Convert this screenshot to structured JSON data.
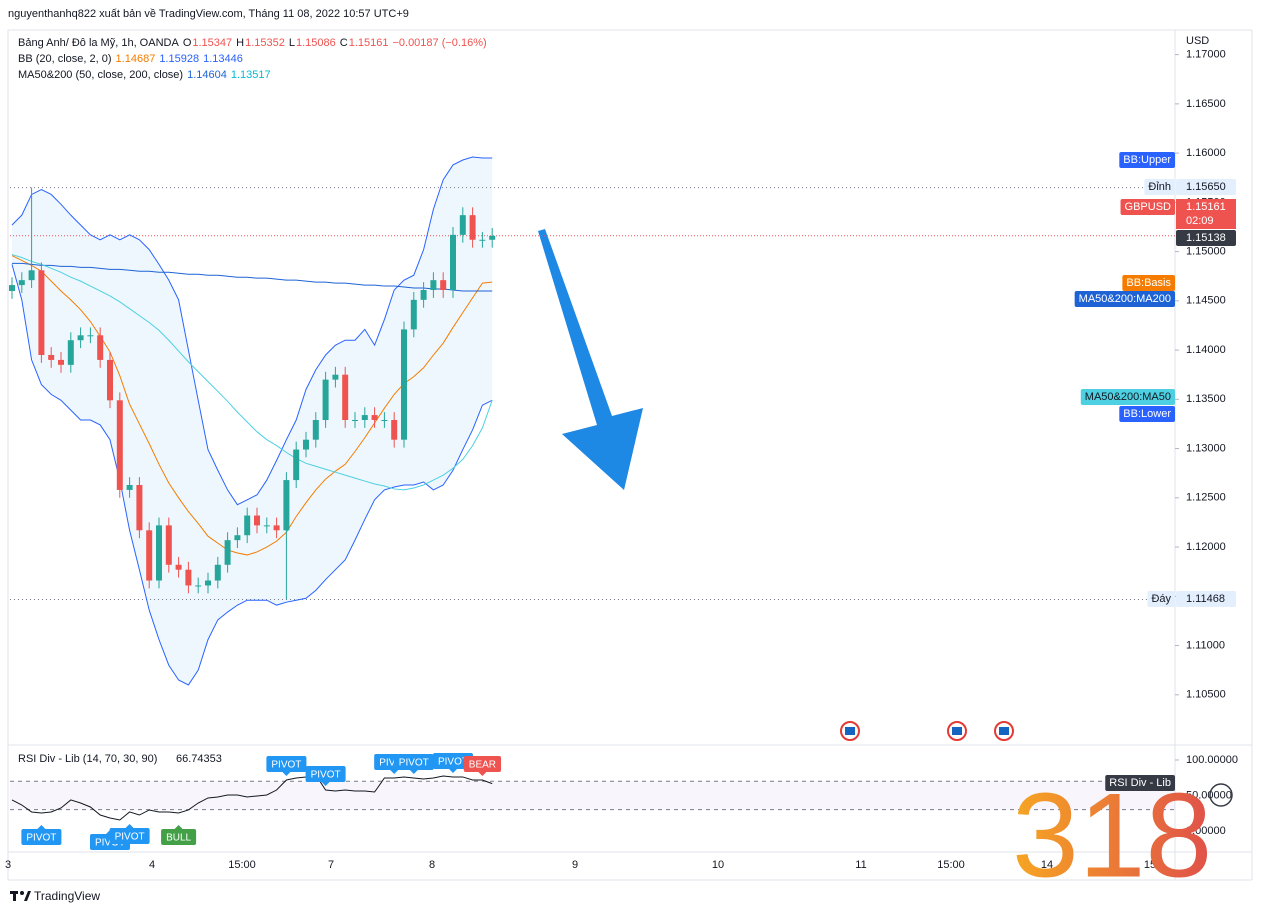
{
  "header": {
    "publisher": "nguyenthanhq822 xuất bản về TradingView.com, Tháng 11 08, 2022 10:57 UTC+9",
    "brand": "TradingView"
  },
  "legend": [
    [
      {
        "text": "Bảng Anh/ Đô la Mỹ, 1h, OANDA",
        "color": "#131722"
      },
      {
        "text": "O",
        "color": "#131722"
      },
      {
        "text": "1.15347",
        "color": "#ef5350"
      },
      {
        "text": "H",
        "color": "#131722"
      },
      {
        "text": "1.15352",
        "color": "#ef5350"
      },
      {
        "text": "L",
        "color": "#131722"
      },
      {
        "text": "1.15086",
        "color": "#ef5350"
      },
      {
        "text": "C",
        "color": "#131722"
      },
      {
        "text": "1.15161",
        "color": "#ef5350"
      },
      {
        "text": "−0.00187 (−0.16%)",
        "color": "#ef5350"
      }
    ],
    [
      {
        "text": "BB (20, close, 2, 0)",
        "color": "#131722"
      },
      {
        "text": "1.14687",
        "color": "#f57c00"
      },
      {
        "text": "1.15928",
        "color": "#2962ff"
      },
      {
        "text": "1.13446",
        "color": "#2962ff"
      }
    ],
    [
      {
        "text": "MA50&200 (50, close, 200, close)",
        "color": "#131722"
      },
      {
        "text": "1.14604",
        "color": "#1e63d6"
      },
      {
        "text": "1.13517",
        "color": "#00bcd4"
      }
    ]
  ],
  "watermark": "318",
  "chart_data": [
    {
      "type": "candlestick",
      "currency": "USD",
      "grid": false,
      "up_color": "#26a69a",
      "down_color": "#ef5350",
      "ylim": [
        1.0999,
        1.1725
      ],
      "yticks": [
        {
          "value": 1.17,
          "label": "1.17000"
        },
        {
          "value": 1.165,
          "label": "1.16500"
        },
        {
          "value": 1.16,
          "label": "1.16000"
        },
        {
          "value": 1.155,
          "label": "1.15500"
        },
        {
          "value": 1.15,
          "label": "1.15000"
        },
        {
          "value": 1.145,
          "label": "1.14500"
        },
        {
          "value": 1.14,
          "label": "1.14000"
        },
        {
          "value": 1.135,
          "label": "1.13500"
        },
        {
          "value": 1.13,
          "label": "1.13000"
        },
        {
          "value": 1.125,
          "label": "1.12500"
        },
        {
          "value": 1.12,
          "label": "1.12000"
        },
        {
          "value": 1.115,
          "label": "1.11500"
        },
        {
          "value": 1.11,
          "label": "1.11000"
        },
        {
          "value": 1.105,
          "label": "1.10500"
        }
      ],
      "open": [
        1.146,
        1.1466,
        1.1471,
        1.1481,
        1.1395,
        1.139,
        1.1385,
        1.141,
        1.1415,
        1.1415,
        1.139,
        1.1349,
        1.1258,
        1.1263,
        1.1217,
        1.1166,
        1.1222,
        1.1182,
        1.1177,
        1.1161,
        1.1161,
        1.1166,
        1.1182,
        1.1207,
        1.1212,
        1.1232,
        1.1222,
        1.1222,
        1.1217,
        1.1268,
        1.1299,
        1.1309,
        1.1329,
        1.137,
        1.1375,
        1.1329,
        1.1329,
        1.1334,
        1.1329,
        1.1329,
        1.1309,
        1.1421,
        1.1451,
        1.1461,
        1.1471,
        1.1461,
        1.1517,
        1.1537,
        1.1512,
        1.1512
      ],
      "high": [
        1.1474,
        1.1479,
        1.1565,
        1.1489,
        1.1403,
        1.1398,
        1.1418,
        1.1423,
        1.1423,
        1.1423,
        1.1398,
        1.1357,
        1.1271,
        1.1271,
        1.1225,
        1.123,
        1.123,
        1.119,
        1.1185,
        1.1169,
        1.1174,
        1.119,
        1.1215,
        1.122,
        1.124,
        1.124,
        1.123,
        1.123,
        1.1276,
        1.1307,
        1.1317,
        1.1337,
        1.1378,
        1.1383,
        1.1383,
        1.1337,
        1.1342,
        1.1342,
        1.1337,
        1.1337,
        1.1429,
        1.1459,
        1.1469,
        1.1479,
        1.1479,
        1.1525,
        1.1545,
        1.1545,
        1.152,
        1.1524
      ],
      "low": [
        1.1452,
        1.1458,
        1.1463,
        1.1387,
        1.1382,
        1.1377,
        1.1377,
        1.1402,
        1.1407,
        1.1382,
        1.1341,
        1.125,
        1.125,
        1.1209,
        1.1158,
        1.1158,
        1.1174,
        1.1169,
        1.1153,
        1.1153,
        1.1153,
        1.1158,
        1.1174,
        1.1199,
        1.1204,
        1.1214,
        1.1214,
        1.1209,
        1.1147,
        1.126,
        1.1291,
        1.1301,
        1.1321,
        1.1362,
        1.1321,
        1.1321,
        1.1321,
        1.1321,
        1.1321,
        1.1301,
        1.1301,
        1.1413,
        1.1443,
        1.1453,
        1.1453,
        1.1453,
        1.1509,
        1.1504,
        1.1504,
        1.1504
      ],
      "close": [
        1.1466,
        1.1471,
        1.1481,
        1.1395,
        1.139,
        1.1385,
        1.141,
        1.1415,
        1.1415,
        1.139,
        1.1349,
        1.1258,
        1.1263,
        1.1217,
        1.1166,
        1.1222,
        1.1182,
        1.1177,
        1.1161,
        1.1161,
        1.1166,
        1.1182,
        1.1207,
        1.1212,
        1.1232,
        1.1222,
        1.1222,
        1.1217,
        1.1268,
        1.1299,
        1.1309,
        1.1329,
        1.137,
        1.1375,
        1.1329,
        1.1329,
        1.1334,
        1.1329,
        1.1329,
        1.1309,
        1.1421,
        1.1451,
        1.1461,
        1.1471,
        1.1461,
        1.1517,
        1.1537,
        1.1512,
        1.1512,
        1.1516
      ],
      "overlays": [
        {
          "name": "BB:Upper",
          "color": "#2962ff",
          "tag_text": "#ffffff",
          "fill": "rgba(33,150,243,0.08)",
          "values": [
            1.1527,
            1.1537,
            1.1558,
            1.1563,
            1.1558,
            1.1548,
            1.1537,
            1.1527,
            1.1517,
            1.1512,
            1.1517,
            1.1512,
            1.1517,
            1.1512,
            1.1502,
            1.1487,
            1.1471,
            1.1451,
            1.14,
            1.1349,
            1.1299,
            1.1278,
            1.1258,
            1.1243,
            1.1248,
            1.1253,
            1.1268,
            1.1288,
            1.1309,
            1.1329,
            1.136,
            1.138,
            1.1395,
            1.1405,
            1.141,
            1.141,
            1.1421,
            1.1405,
            1.1431,
            1.1461,
            1.1471,
            1.1476,
            1.1502,
            1.1543,
            1.1573,
            1.1588,
            1.1593,
            1.1596,
            1.1595,
            1.1595
          ]
        },
        {
          "name": "BB:Basis",
          "color": "#f57c00",
          "tag_text": "#ffffff",
          "values": [
            1.1496,
            1.1491,
            1.1486,
            1.148,
            1.147,
            1.146,
            1.1451,
            1.1441,
            1.1429,
            1.1414,
            1.1398,
            1.1374,
            1.1345,
            1.1325,
            1.1305,
            1.1284,
            1.1265,
            1.125,
            1.1236,
            1.1224,
            1.1211,
            1.1204,
            1.1197,
            1.1194,
            1.1192,
            1.1195,
            1.12,
            1.1206,
            1.1215,
            1.1231,
            1.1245,
            1.1258,
            1.1269,
            1.1277,
            1.1284,
            1.1297,
            1.1311,
            1.1326,
            1.1341,
            1.1355,
            1.1366,
            1.1373,
            1.1382,
            1.1395,
            1.1407,
            1.1423,
            1.1438,
            1.1453,
            1.1468,
            1.1469
          ]
        },
        {
          "name": "BB:Lower",
          "color": "#2962ff",
          "tag_text": "#ffffff",
          "fill": "rgba(33,150,243,0.08)",
          "values": [
            1.1487,
            1.1451,
            1.139,
            1.1365,
            1.1355,
            1.1349,
            1.1339,
            1.1329,
            1.1329,
            1.1324,
            1.1309,
            1.1268,
            1.1217,
            1.1177,
            1.1136,
            1.1106,
            1.108,
            1.1065,
            1.106,
            1.1075,
            1.1106,
            1.1126,
            1.1134,
            1.1141,
            1.1146,
            1.1146,
            1.1146,
            1.1141,
            1.1144,
            1.1146,
            1.1148,
            1.1156,
            1.1167,
            1.1177,
            1.1187,
            1.1207,
            1.1228,
            1.1248,
            1.1258,
            1.1261,
            1.1263,
            1.1263,
            1.1266,
            1.1258,
            1.1263,
            1.1278,
            1.1299,
            1.1319,
            1.1344,
            1.1349
          ]
        },
        {
          "name": "MA50&200:MA200",
          "color": "#1e63d6",
          "tag_text": "#ffffff",
          "values": [
            1.1488,
            1.1488,
            1.1487,
            1.1486,
            1.1486,
            1.1485,
            1.1485,
            1.1484,
            1.1484,
            1.1483,
            1.1482,
            1.1482,
            1.1481,
            1.148,
            1.148,
            1.1479,
            1.1479,
            1.1478,
            1.1477,
            1.1477,
            1.1476,
            1.1476,
            1.1475,
            1.1474,
            1.1474,
            1.1473,
            1.1473,
            1.1472,
            1.1471,
            1.1471,
            1.147,
            1.1469,
            1.1469,
            1.1468,
            1.1468,
            1.1467,
            1.1466,
            1.1466,
            1.1465,
            1.1465,
            1.1464,
            1.1463,
            1.1463,
            1.1462,
            1.1462,
            1.1461,
            1.146,
            1.146,
            1.146,
            1.146
          ]
        },
        {
          "name": "MA50&200:MA50",
          "color": "#4dd0e1",
          "tag_text": "#131722",
          "values": [
            1.1497,
            1.1494,
            1.149,
            1.1487,
            1.1483,
            1.1479,
            1.1474,
            1.147,
            1.1465,
            1.146,
            1.1455,
            1.1449,
            1.1442,
            1.1435,
            1.1428,
            1.142,
            1.141,
            1.1399,
            1.1388,
            1.1378,
            1.1368,
            1.1358,
            1.1348,
            1.1337,
            1.1327,
            1.1317,
            1.1309,
            1.1303,
            1.1296,
            1.129,
            1.1285,
            1.1282,
            1.1279,
            1.1276,
            1.1273,
            1.127,
            1.1267,
            1.1264,
            1.1262,
            1.1259,
            1.1258,
            1.126,
            1.1263,
            1.1268,
            1.1273,
            1.128,
            1.1289,
            1.1303,
            1.1321,
            1.1349
          ]
        }
      ],
      "levels": [
        {
          "label": "Đỉnh",
          "value": 1.1565,
          "value_label": "1.15650"
        },
        {
          "label": "Đáy",
          "value": 1.11468,
          "value_label": "1.11468"
        }
      ],
      "last_price": {
        "symbol": "GBPUSD",
        "value": 1.15161,
        "label": "1.15161",
        "countdown": "02:09",
        "color": "#ef5350"
      },
      "bid_price": {
        "value": 1.15138,
        "label": "1.15138"
      }
    },
    {
      "type": "line",
      "title": "RSI Div - Lib (14, 70, 30, 90)",
      "value_label": "66.74353",
      "tag": "RSI Div - Lib",
      "color": "#131722",
      "ylim": [
        -29.6,
        121.1
      ],
      "yticks": [
        {
          "value": 100,
          "label": "100.00000"
        },
        {
          "value": 50,
          "label": "50.00000"
        },
        {
          "value": 0,
          "label": "0.00000"
        }
      ],
      "bands": [
        70,
        30
      ],
      "values": [
        43.7,
        36.6,
        26.8,
        25.4,
        26.8,
        32.4,
        43.7,
        39.4,
        33.8,
        22.5,
        18.3,
        15.5,
        26.8,
        22.5,
        29.6,
        26.8,
        26.8,
        25.4,
        29.6,
        39.4,
        46.5,
        47.9,
        50.7,
        50.7,
        47.9,
        49.3,
        50.7,
        57.7,
        71.8,
        74.6,
        76.1,
        78.9,
        57.7,
        56.3,
        57.7,
        56.3,
        56.3,
        54.9,
        74.6,
        74.6,
        76.1,
        74.6,
        73.2,
        74.6,
        77.5,
        76.1,
        76.1,
        71.8,
        71.8,
        66.7
      ],
      "markers": [
        {
          "label": "PIVOT",
          "index": 3,
          "position": "below",
          "color": "#2196f3"
        },
        {
          "label": "PIVOT",
          "index": 10,
          "position": "below",
          "color": "#2196f3"
        },
        {
          "label": "PIVOT",
          "index": 12,
          "position": "below",
          "color": "#2196f3"
        },
        {
          "label": "BULL",
          "index": 17,
          "position": "below",
          "color": "#43a047"
        },
        {
          "label": "PIVOT",
          "index": 28,
          "position": "above",
          "color": "#2196f3"
        },
        {
          "label": "PIVOT",
          "index": 32,
          "position": "above",
          "color": "#2196f3"
        },
        {
          "label": "PIVOT",
          "index": 39,
          "position": "above",
          "color": "#2196f3"
        },
        {
          "label": "PIVOT",
          "index": 41,
          "position": "above",
          "color": "#2196f3"
        },
        {
          "label": "PIVOT",
          "index": 45,
          "position": "above",
          "color": "#2196f3"
        },
        {
          "label": "BEAR",
          "index": 48,
          "position": "above",
          "color": "#ef5350"
        }
      ],
      "x_labels": [
        "3",
        "4",
        "15:00",
        "7",
        "8",
        "9",
        "10",
        "11",
        "15:00",
        "14",
        "15"
      ]
    }
  ]
}
